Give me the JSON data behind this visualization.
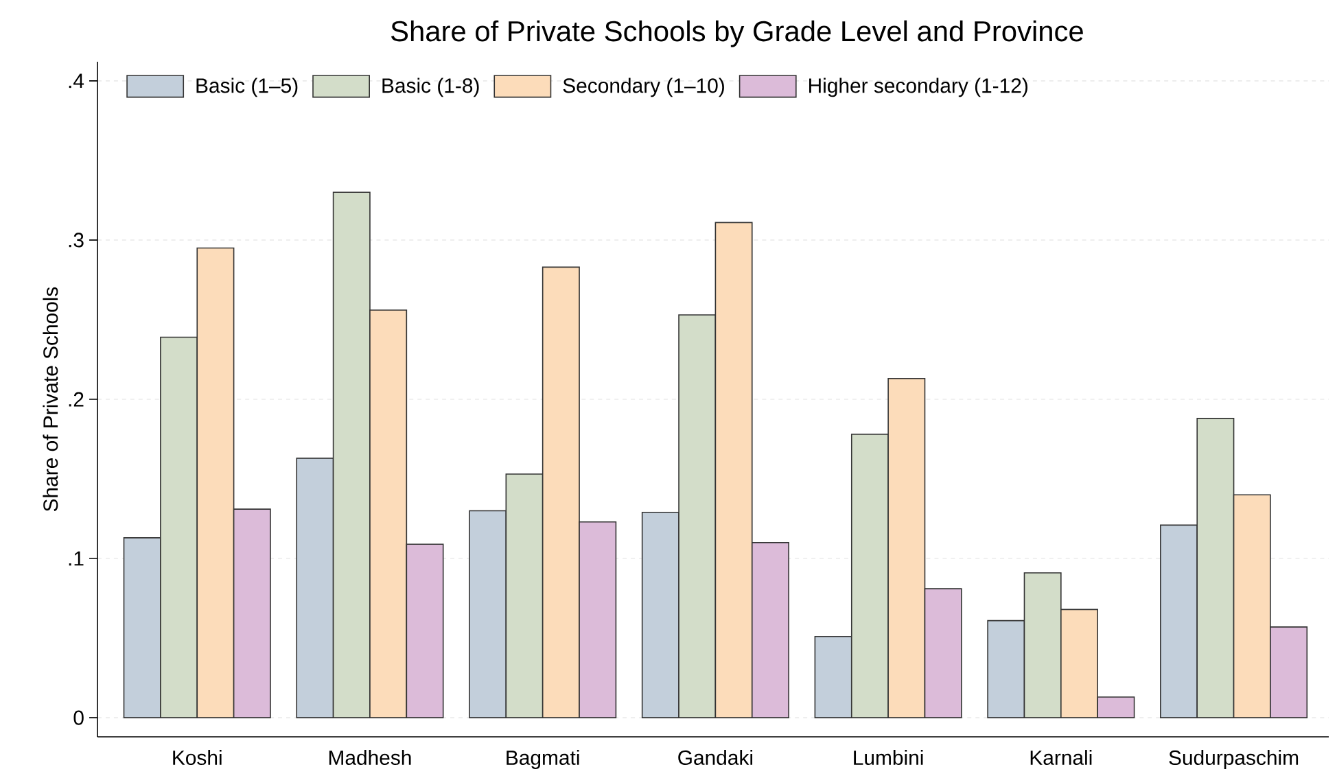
{
  "chart_data": {
    "type": "bar",
    "title": "Share of Private Schools by Grade Level and Province",
    "ylabel": "Share of Private Schools",
    "categories": [
      "Koshi",
      "Madhesh",
      "Bagmati",
      "Gandaki",
      "Lumbini",
      "Karnali",
      "Sudurpaschim"
    ],
    "series": [
      {
        "name": "Basic (1–5)",
        "color": "#c3cfdb",
        "values": [
          0.113,
          0.163,
          0.13,
          0.129,
          0.051,
          0.061,
          0.121
        ]
      },
      {
        "name": "Basic (1-8)",
        "color": "#d3ddc9",
        "values": [
          0.239,
          0.33,
          0.153,
          0.253,
          0.178,
          0.091,
          0.188
        ]
      },
      {
        "name": "Secondary (1–10)",
        "color": "#fcdcba",
        "values": [
          0.295,
          0.256,
          0.283,
          0.311,
          0.213,
          0.068,
          0.14
        ]
      },
      {
        "name": "Higher secondary (1-12)",
        "color": "#dcbbd9",
        "values": [
          0.131,
          0.109,
          0.123,
          0.11,
          0.081,
          0.013,
          0.057
        ]
      }
    ],
    "ylim": [
      -0.012,
      0.412
    ],
    "yticks": [
      0,
      {
        "value": 0.1,
        "label": ".1"
      },
      {
        "value": 0.2,
        "label": ".2"
      },
      {
        "value": 0.3,
        "label": ".3"
      },
      {
        "value": 0.4,
        "label": ".4"
      }
    ],
    "grid": "y",
    "legend": "top"
  }
}
